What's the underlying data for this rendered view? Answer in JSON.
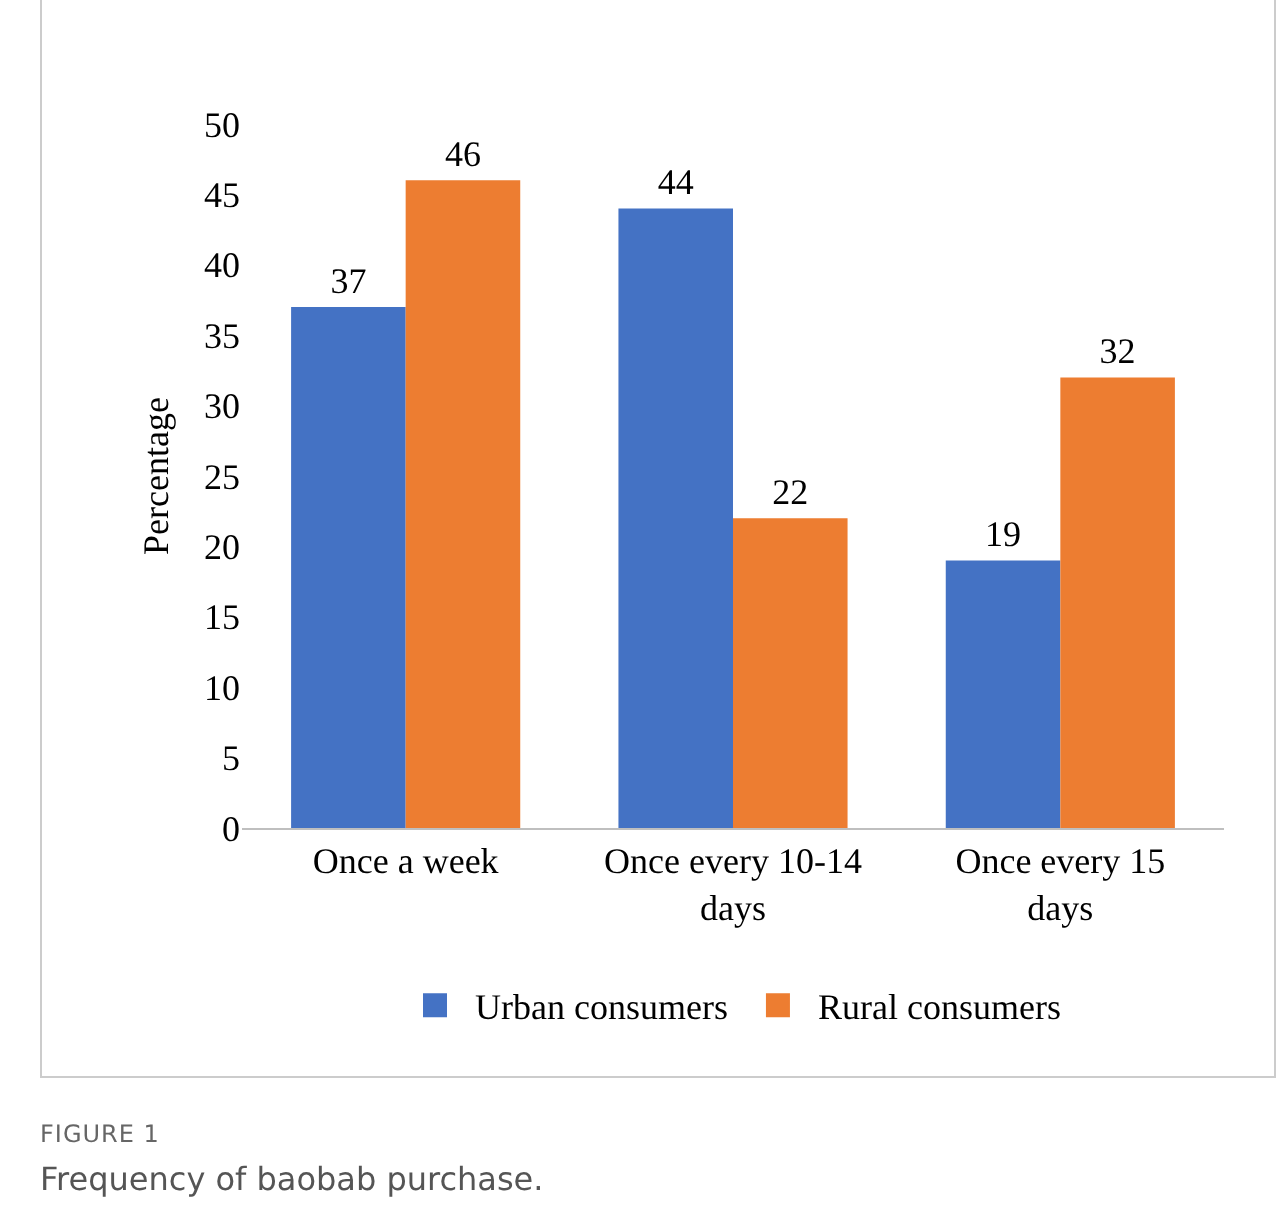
{
  "chart_data": {
    "type": "bar",
    "ylabel": "Percentage",
    "categories": [
      "Once a week",
      "Once every 10-14 days",
      "Once every 15 days"
    ],
    "series": [
      {
        "name": "Urban consumers",
        "color": "#4472c4",
        "values": [
          37,
          44,
          19
        ]
      },
      {
        "name": "Rural consumers",
        "color": "#ed7d31",
        "values": [
          46,
          22,
          32
        ]
      }
    ],
    "ylim": [
      0,
      50
    ],
    "yticks": [
      0,
      5,
      10,
      15,
      20,
      25,
      30,
      35,
      40,
      45,
      50
    ],
    "grid": false,
    "legend": "bottom",
    "data_labels": true,
    "annotations": [
      "FIGURE 1",
      "Frequency of baobab purchase."
    ]
  }
}
